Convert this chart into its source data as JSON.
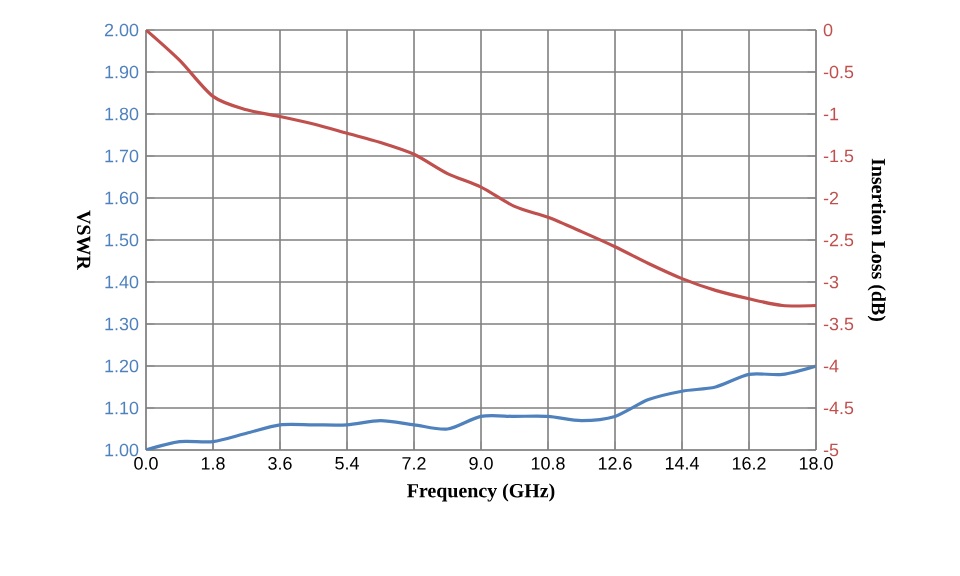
{
  "chart_data": {
    "type": "line",
    "xlabel": "Frequency (GHz)",
    "ylabel": "VSWR",
    "y2label": "Insertion Loss (dB)",
    "x": [
      0,
      0.9,
      1.8,
      2.7,
      3.6,
      4.5,
      5.4,
      6.3,
      7.2,
      8.1,
      9.0,
      9.9,
      10.8,
      11.7,
      12.6,
      13.5,
      14.4,
      15.3,
      16.2,
      17.1,
      18.0
    ],
    "series": [
      {
        "color": "#4f81bd",
        "values": [
          1.0,
          1.02,
          1.02,
          1.04,
          1.06,
          1.06,
          1.06,
          1.07,
          1.06,
          1.05,
          1.08,
          1.08,
          1.08,
          1.07,
          1.08,
          1.12,
          1.14,
          1.15,
          1.18,
          1.18,
          1.2
        ]
      },
      {
        "color": "#c0504d",
        "axis": "y2",
        "values": [
          0,
          -0.36,
          -0.79,
          -0.95,
          -1.03,
          -1.12,
          -1.23,
          -1.34,
          -1.48,
          -1.71,
          -1.87,
          -2.1,
          -2.23,
          -2.4,
          -2.58,
          -2.78,
          -2.96,
          -3.1,
          -3.2,
          -3.28,
          -3.28
        ]
      }
    ],
    "xlim": [
      0,
      18
    ],
    "xticks": [
      {
        "value": 0,
        "label": "0.0"
      },
      1.8,
      3.6,
      5.4,
      7.2,
      {
        "value": 9,
        "label": "9.0"
      },
      10.8,
      12.6,
      14.4,
      16.2,
      {
        "value": 18,
        "label": "18.0"
      }
    ],
    "ylim": [
      1,
      2
    ],
    "yticks": [
      {
        "value": 1,
        "label": "1.00"
      },
      {
        "value": 1.1,
        "label": "1.10"
      },
      {
        "value": 1.2,
        "label": "1.20"
      },
      {
        "value": 1.3,
        "label": "1.30"
      },
      {
        "value": 1.4,
        "label": "1.40"
      },
      {
        "value": 1.5,
        "label": "1.50"
      },
      {
        "value": 1.6,
        "label": "1.60"
      },
      {
        "value": 1.7,
        "label": "1.70"
      },
      {
        "value": 1.8,
        "label": "1.80"
      },
      {
        "value": 1.9,
        "label": "1.90"
      },
      {
        "value": 2,
        "label": "2.00"
      }
    ],
    "y2lim": [
      -5,
      0
    ],
    "y2ticks": [
      -5,
      -4.5,
      -4,
      -3.5,
      -3,
      -2.5,
      -2,
      -1.5,
      -1,
      -0.5,
      0
    ],
    "grid": true,
    "marker": "none",
    "line_style": "solid"
  }
}
